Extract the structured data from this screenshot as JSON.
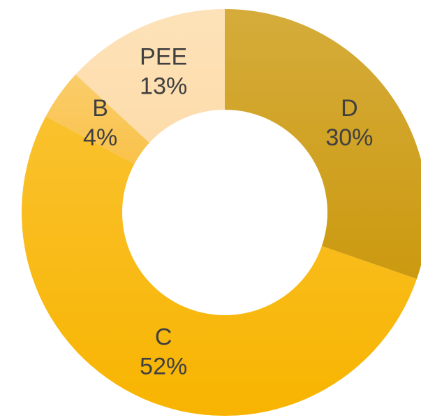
{
  "chart_data": {
    "type": "donut",
    "categories": [
      "D",
      "C",
      "B",
      "PEE"
    ],
    "values": [
      30,
      52,
      4,
      13
    ],
    "value_labels": [
      "30%",
      "52%",
      "4%",
      "13%"
    ],
    "colors": [
      "#cc9a10",
      "#f8b400",
      "#f9c24a",
      "#fddcaa"
    ]
  }
}
